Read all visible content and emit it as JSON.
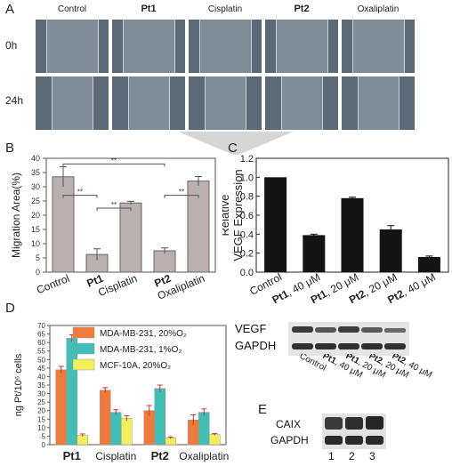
{
  "panel_letters": {
    "A": "A",
    "B": "B",
    "C": "C",
    "D": "D",
    "E": "E"
  },
  "panel_a": {
    "columns": [
      "Control",
      "Pt1",
      "Cisplatin",
      "Pt2",
      "Oxaliplatin"
    ],
    "rows": [
      "0h",
      "24h"
    ]
  },
  "panel_e": {
    "labels": [
      "CAIX",
      "GAPDH"
    ],
    "lanes": [
      "1",
      "2",
      "3"
    ]
  },
  "blot_c": {
    "labels": [
      "VEGF",
      "GAPDH"
    ],
    "lanes": [
      "Control",
      "Pt1, 40 μM",
      "Pt1, 20 μM",
      "Pt2, 20 μM",
      "Pt2, 40 μM"
    ]
  },
  "chart_data": [
    {
      "panel": "B",
      "type": "bar",
      "categories": [
        "Control",
        "Pt1",
        "Cisplatin",
        "Pt2",
        "Oxaliplatin"
      ],
      "values": [
        33.5,
        6.2,
        24.3,
        7.5,
        32.0
      ],
      "errors": [
        3.5,
        2.0,
        0.6,
        1.0,
        1.6
      ],
      "ylabel": "Migration Area(%)",
      "ylim": [
        0,
        40
      ],
      "yticks": [
        0,
        5,
        10,
        15,
        20,
        25,
        30,
        35,
        40
      ],
      "significance": [
        {
          "from": 0,
          "to": 1,
          "label": "**"
        },
        {
          "from": 1,
          "to": 2,
          "label": "**"
        },
        {
          "from": 0,
          "to": 3,
          "label": "**"
        },
        {
          "from": 3,
          "to": 4,
          "label": "**"
        }
      ],
      "colors": {
        "bar": "#b9b0b0",
        "edge": "#6b6464"
      }
    },
    {
      "panel": "C",
      "type": "bar",
      "categories": [
        "Control",
        "Pt1, 40 μM",
        "Pt1, 20 μM",
        "Pt2, 20 μM",
        "Pt2, 40 μM"
      ],
      "values": [
        1.0,
        0.39,
        0.78,
        0.45,
        0.16
      ],
      "errors": [
        0.0,
        0.01,
        0.01,
        0.04,
        0.01
      ],
      "ylabel": "Relative\nVEGF Expression",
      "ylim": [
        0,
        1.2
      ],
      "yticks": [
        "0.0",
        "0.2",
        "0.4",
        "0.6",
        "0.8",
        "1.0",
        "1.2"
      ],
      "colors": {
        "bar": "#141414"
      }
    },
    {
      "panel": "D",
      "type": "bar",
      "categories": [
        "Pt1",
        "Cisplatin",
        "Pt2",
        "Oxaliplatin"
      ],
      "ylabel": "ng Pt/10⁶ cells",
      "ylim": [
        0,
        70
      ],
      "yticks": [
        0,
        5,
        10,
        15,
        20,
        25,
        30,
        35,
        40,
        45,
        50,
        55,
        60,
        65,
        70
      ],
      "legend_position": "top-right",
      "series": [
        {
          "name": "MDA-MB-231, 20%O₂",
          "values": [
            44,
            32,
            20,
            14.5
          ],
          "errors": [
            2.0,
            1.5,
            3.0,
            3.0
          ],
          "color": "#f07a3a"
        },
        {
          "name": "MDA-MB-231, 1%O₂",
          "values": [
            62.5,
            19,
            33,
            19
          ],
          "errors": [
            2.0,
            1.5,
            2.0,
            2.0
          ],
          "color": "#3fbfb6"
        },
        {
          "name": "MCF-10A, 20%O₂",
          "values": [
            5.5,
            15.5,
            4.0,
            6.0
          ],
          "errors": [
            0.8,
            1.5,
            0.5,
            0.5
          ],
          "color": "#f2ef5a"
        }
      ]
    }
  ]
}
